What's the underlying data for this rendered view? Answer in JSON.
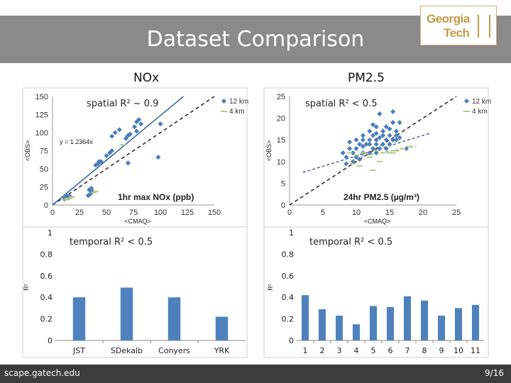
{
  "slide": {
    "title": "Dataset Comparison",
    "logo_line1": "Georgia",
    "logo_line2": "Tech",
    "footer_url": "scape.gatech.edu",
    "page": "9/16"
  },
  "columns": {
    "left": "NOx",
    "right": "PM2.5"
  },
  "chart_data": [
    {
      "id": "nox_scatter",
      "type": "scatter",
      "annotation": "spatial R² ~ 0.9",
      "equation": "y = 1.2364x",
      "xlabel": "<CMAQ>",
      "ylabel": "<OBS>",
      "inner_label": "1hr max NOx (ppb)",
      "xlim": [
        0,
        150
      ],
      "ylim": [
        0,
        150
      ],
      "x_ticks": [
        "0",
        "25",
        "50",
        "75",
        "100",
        "125",
        "150"
      ],
      "y_ticks": [
        "0",
        "25",
        "50",
        "75",
        "100",
        "125",
        "150"
      ],
      "legend": [
        "12 km",
        "4 km"
      ],
      "series": [
        {
          "name": "12 km",
          "color": "#4a7ebb",
          "points": [
            [
              11,
              8
            ],
            [
              12,
              9
            ],
            [
              13,
              10
            ],
            [
              14,
              11
            ],
            [
              15,
              10
            ],
            [
              16,
              12
            ],
            [
              13,
              13
            ],
            [
              33,
              13
            ],
            [
              35,
              15
            ],
            [
              36,
              17
            ],
            [
              37,
              19
            ],
            [
              34,
              21
            ],
            [
              36,
              23
            ],
            [
              40,
              55
            ],
            [
              42,
              57
            ],
            [
              43,
              60
            ],
            [
              45,
              60
            ],
            [
              50,
              68
            ],
            [
              53,
              72
            ],
            [
              55,
              75
            ],
            [
              55,
              95
            ],
            [
              58,
              100
            ],
            [
              62,
              104
            ],
            [
              68,
              92
            ],
            [
              70,
              96
            ],
            [
              72,
              98
            ],
            [
              76,
              108
            ],
            [
              78,
              115
            ],
            [
              80,
              118
            ],
            [
              82,
              112
            ],
            [
              78,
              102
            ],
            [
              98,
              66
            ],
            [
              100,
              112
            ],
            [
              70,
              58
            ]
          ]
        },
        {
          "name": "4 km",
          "color": "#b3c98c",
          "points": [
            [
              12,
              7
            ],
            [
              14,
              9
            ],
            [
              16,
              9
            ],
            [
              18,
              11
            ],
            [
              38,
              17
            ],
            [
              40,
              19
            ],
            [
              65,
              83
            ]
          ]
        }
      ],
      "trendline_slope": 1.2364
    },
    {
      "id": "pm_scatter",
      "type": "scatter",
      "annotation": "spatial R² < 0.5",
      "xlabel": "<CMAQ>",
      "ylabel": "<OBS>",
      "inner_label": "24hr PM2.5 (µg/m³)",
      "xlim": [
        0,
        25
      ],
      "ylim": [
        0,
        25
      ],
      "x_ticks": [
        "0",
        "5",
        "10",
        "15",
        "20",
        "25"
      ],
      "y_ticks": [
        "0",
        "5",
        "10",
        "15",
        "20",
        "25"
      ],
      "legend": [
        "12 km",
        "4 km"
      ],
      "series": [
        {
          "name": "12 km",
          "color": "#4a7ebb",
          "points": [
            [
              8,
              12
            ],
            [
              8.5,
              11
            ],
            [
              9,
              13
            ],
            [
              9,
              14.5
            ],
            [
              9.5,
              12
            ],
            [
              10,
              11
            ],
            [
              10,
              13
            ],
            [
              10,
              15
            ],
            [
              10.5,
              14
            ],
            [
              11,
              12
            ],
            [
              11,
              13.5
            ],
            [
              11,
              15
            ],
            [
              11,
              16
            ],
            [
              11.5,
              14
            ],
            [
              12,
              12
            ],
            [
              12,
              14
            ],
            [
              12,
              15
            ],
            [
              12,
              17
            ],
            [
              12.5,
              13
            ],
            [
              12.5,
              16
            ],
            [
              13,
              12
            ],
            [
              13,
              14
            ],
            [
              13,
              15
            ],
            [
              13,
              16.5
            ],
            [
              13,
              18
            ],
            [
              13.5,
              13
            ],
            [
              13.5,
              15.5
            ],
            [
              14,
              14
            ],
            [
              14,
              16
            ],
            [
              14,
              17
            ],
            [
              14.5,
              13
            ],
            [
              14.5,
              15
            ],
            [
              14.5,
              18
            ],
            [
              15,
              14
            ],
            [
              15,
              16
            ],
            [
              15,
              17.5
            ],
            [
              15.5,
              15
            ],
            [
              15.5,
              19
            ],
            [
              16,
              15
            ],
            [
              16,
              16
            ],
            [
              16,
              17
            ],
            [
              16.5,
              15.5
            ],
            [
              13.5,
              21
            ],
            [
              15.5,
              21.5
            ],
            [
              12.5,
              18.5
            ],
            [
              17.5,
              13
            ],
            [
              16.5,
              19
            ],
            [
              9.5,
              10
            ],
            [
              10.5,
              10.5
            ],
            [
              8.5,
              9.5
            ]
          ]
        },
        {
          "name": "4 km",
          "color": "#b3c98c",
          "points": [
            [
              9,
              12
            ],
            [
              10,
              11.5
            ],
            [
              11,
              12
            ],
            [
              12,
              11
            ],
            [
              13,
              12.5
            ],
            [
              14,
              12
            ],
            [
              15,
              12
            ],
            [
              16,
              12.5
            ],
            [
              17,
              13
            ],
            [
              10.5,
              9
            ],
            [
              12.5,
              8
            ],
            [
              13.5,
              10
            ],
            [
              15.5,
              12
            ],
            [
              18,
              13.5
            ],
            [
              9.5,
              9.5
            ]
          ]
        }
      ]
    },
    {
      "id": "nox_bar",
      "type": "bar",
      "annotation": "temporal R² < 0.5",
      "ylabel": "R²",
      "categories": [
        "JST",
        "SDekalb",
        "Conyers",
        "YRK"
      ],
      "values": [
        0.4,
        0.49,
        0.4,
        0.22
      ],
      "ylim": [
        0,
        1
      ],
      "y_ticks": [
        "0",
        "0.2",
        "0.4",
        "0.6",
        "0.8",
        "1"
      ],
      "color": "#4f81bd"
    },
    {
      "id": "pm_bar",
      "type": "bar",
      "annotation": "temporal R² < 0.5",
      "ylabel": "R²",
      "categories": [
        "1",
        "2",
        "3",
        "4",
        "5",
        "6",
        "7",
        "8",
        "9",
        "10",
        "11"
      ],
      "values": [
        0.42,
        0.29,
        0.23,
        0.15,
        0.32,
        0.31,
        0.41,
        0.37,
        0.23,
        0.3,
        0.33
      ],
      "ylim": [
        0,
        1
      ],
      "y_ticks": [
        "0",
        "0.2",
        "0.4",
        "0.6",
        "0.8",
        "1"
      ],
      "color": "#4f81bd"
    }
  ]
}
